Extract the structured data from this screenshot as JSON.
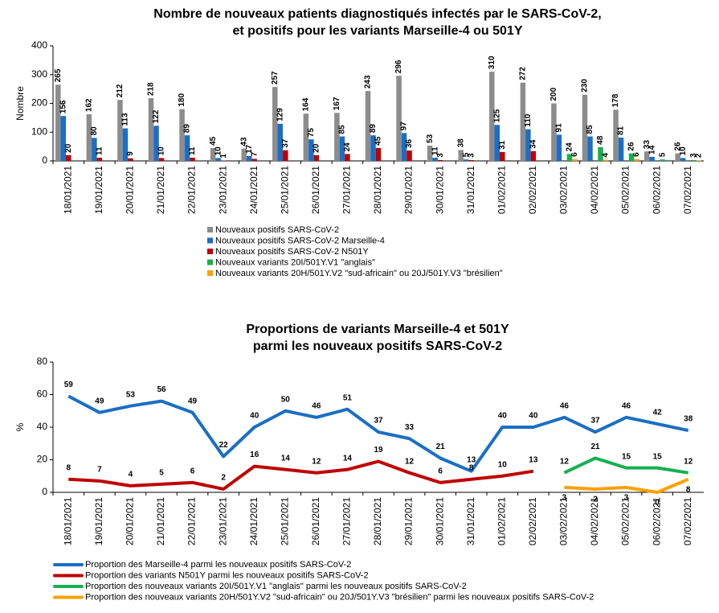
{
  "chart_data": [
    {
      "type": "bar",
      "title": [
        "Nombre de nouveaux patients diagnostiqués infectés par le SARS-CoV-2,",
        "et positifs pour les variants Marseille-4 ou 501Y"
      ],
      "y_label": "Nombre",
      "categories": [
        "18/01/2021",
        "19/01/2021",
        "20/01/2021",
        "21/01/2021",
        "22/01/2021",
        "23/01/2021",
        "24/01/2021",
        "25/01/2021",
        "26/01/2021",
        "27/01/2021",
        "28/01/2021",
        "29/01/2021",
        "30/01/2021",
        "31/01/2021",
        "01/02/2021",
        "02/02/2021",
        "03/02/2021",
        "04/02/2021",
        "05/02/2021",
        "06/02/2021",
        "07/02/2021"
      ],
      "series": [
        {
          "name": "Nouveaux positifs SARS-CoV-2",
          "color": "#8c8c8c",
          "values": [
            265,
            162,
            212,
            218,
            180,
            45,
            43,
            257,
            164,
            167,
            243,
            296,
            53,
            38,
            310,
            272,
            200,
            230,
            178,
            33,
            26
          ]
        },
        {
          "name": "Nouveaux positifs SARS-CoV-2 Marseille-4",
          "color": "#1a6fc4",
          "values": [
            156,
            80,
            113,
            122,
            89,
            10,
            17,
            129,
            75,
            85,
            89,
            97,
            11,
            5,
            125,
            110,
            91,
            85,
            81,
            14,
            10
          ]
        },
        {
          "name": "Nouveaux positifs SARS-CoV-2 N501Y",
          "color": "#c00000",
          "values": [
            20,
            11,
            9,
            10,
            11,
            1,
            7,
            37,
            20,
            24,
            45,
            36,
            3,
            3,
            31,
            34,
            null,
            null,
            null,
            null,
            null
          ]
        },
        {
          "name": "Nouveaux variants 20I/501Y.V1 \"anglais\"",
          "color": "#17b050",
          "values": [
            null,
            null,
            null,
            null,
            null,
            null,
            null,
            null,
            null,
            null,
            null,
            null,
            null,
            null,
            null,
            null,
            24,
            48,
            26,
            5,
            3
          ]
        },
        {
          "name": "Nouveaux variants 20H/501Y.V2 \"sud-africain\" ou 20J/501Y.V3 \"brésilien\"",
          "color": "#ffa000",
          "values": [
            null,
            null,
            null,
            null,
            null,
            null,
            null,
            null,
            null,
            null,
            null,
            null,
            null,
            null,
            null,
            null,
            6,
            4,
            6,
            null,
            2
          ]
        }
      ],
      "ylim": [
        0,
        400
      ],
      "yticks": [
        0,
        100,
        200,
        300,
        400
      ],
      "grid": false
    },
    {
      "type": "line",
      "title": [
        "Proportions de variants Marseille-4 et 501Y",
        "parmi les nouveaux positifs SARS-CoV-2"
      ],
      "y_label": "%",
      "categories": [
        "18/01/2021",
        "19/01/2021",
        "20/01/2021",
        "21/01/2021",
        "22/01/2021",
        "23/01/2021",
        "24/01/2021",
        "25/01/2021",
        "26/01/2021",
        "27/01/2021",
        "28/01/2021",
        "29/01/2021",
        "30/01/2021",
        "31/01/2021",
        "01/02/2021",
        "02/02/2021",
        "03/02/2021",
        "04/02/2021",
        "05/02/2021",
        "06/02/2021",
        "07/02/2021"
      ],
      "series": [
        {
          "name": "Proportion des Marseille-4 parmi les nouveaux positifs SARS-CoV-2",
          "color": "#1a6fc4",
          "values": [
            59,
            49,
            53,
            56,
            49,
            22,
            40,
            50,
            46,
            51,
            37,
            33,
            21,
            13,
            40,
            40,
            46,
            37,
            46,
            42,
            38
          ]
        },
        {
          "name": "Proportion des variants N501Y parmi les nouveaux positifs SARS-CoV-2",
          "color": "#c00000",
          "values": [
            8,
            7,
            4,
            5,
            6,
            2,
            16,
            14,
            12,
            14,
            19,
            12,
            6,
            8,
            10,
            13,
            null,
            null,
            null,
            null,
            null
          ]
        },
        {
          "name": "Proportion des nouveaux variants 20I/501Y.V1 \"anglais\" parmi les nouveaux positifs SARS-CoV-2",
          "color": "#17b050",
          "values": [
            null,
            null,
            null,
            null,
            null,
            null,
            null,
            null,
            null,
            null,
            null,
            null,
            null,
            null,
            null,
            null,
            12,
            21,
            15,
            15,
            12
          ]
        },
        {
          "name": "Proportion des nouveaux variants 20H/501Y.V2 \"sud-africain\" ou 20J/501Y.V3 \"brésilien\" parmi les nouveaux positifs SARS-CoV-2",
          "color": "#ffa000",
          "values": [
            null,
            null,
            null,
            null,
            null,
            null,
            null,
            null,
            null,
            null,
            null,
            null,
            null,
            null,
            null,
            null,
            3,
            2,
            3,
            0,
            8
          ]
        }
      ],
      "ylim": [
        0,
        80
      ],
      "yticks": [
        0,
        20,
        40,
        60,
        80
      ],
      "grid": false
    }
  ]
}
